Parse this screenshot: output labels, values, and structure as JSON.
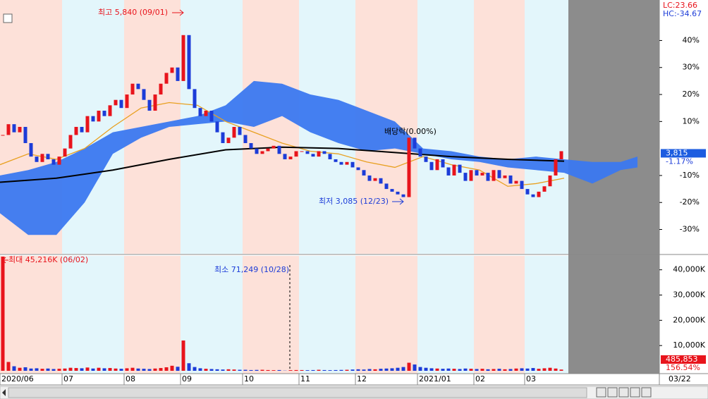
{
  "chart_data": [
    {
      "type": "candlestick",
      "values": [
        5,
        9,
        6,
        8,
        2,
        -3,
        -5,
        -2,
        -4,
        -6,
        -3,
        0,
        5,
        8,
        6,
        12,
        10,
        14,
        12,
        16,
        18,
        15,
        20,
        24,
        22,
        18,
        14,
        20,
        24,
        28,
        30,
        25,
        42,
        22,
        15,
        12,
        14,
        10,
        6,
        2,
        4,
        8,
        5,
        2,
        0,
        -2,
        -1,
        0,
        1,
        -2,
        -4,
        -3,
        -1,
        -1,
        -2,
        -3,
        -1,
        -2,
        -4,
        -5,
        -6,
        -5,
        -7,
        -8,
        -10,
        -12,
        -11,
        -13,
        -15,
        -16,
        -17,
        -18,
        4,
        0,
        -3,
        -5,
        -8,
        -4,
        -7,
        -10,
        -6,
        -9,
        -12,
        -8,
        -10,
        -9,
        -12,
        -8,
        -11,
        -10,
        -13,
        -12,
        -15,
        -17,
        -18,
        -16,
        -14,
        -10,
        -4,
        -1
      ],
      "up_color": "#e8141c",
      "down_color": "#1c3cd8",
      "xlim": [
        0,
        101
      ],
      "ylim": [
        -39,
        55
      ],
      "yticks": [
        {
          "value": 40,
          "label": "40%"
        },
        {
          "value": 30,
          "label": "30%"
        },
        {
          "value": 20,
          "label": "20%"
        },
        {
          "value": 10,
          "label": "10%"
        },
        {
          "value": -10,
          "label": "-10%"
        },
        {
          "value": -20,
          "label": "-20%"
        },
        {
          "value": -30,
          "label": "-30%"
        }
      ],
      "cloud": {
        "color": "#3b78f0",
        "x": [
          0,
          5,
          10,
          15,
          20,
          25,
          30,
          35,
          40,
          45,
          50,
          55,
          60,
          65,
          70,
          75,
          80,
          85,
          90,
          95,
          100,
          105,
          110,
          113
        ],
        "upper": [
          -10,
          -8,
          -5,
          0,
          6,
          8,
          10,
          12,
          16,
          25,
          24,
          20,
          18,
          14,
          10,
          0,
          -1,
          -3,
          -4,
          -3,
          -4,
          -5,
          -5,
          -3
        ],
        "lower": [
          -24,
          -32,
          -32,
          -20,
          -2,
          4,
          8,
          9,
          10,
          8,
          12,
          6,
          2,
          -1,
          0,
          -2,
          -4,
          -5,
          -7,
          -8,
          -9,
          -13,
          -8,
          -7
        ]
      },
      "lines": [
        {
          "color": "#e8a020",
          "x": [
            0,
            5,
            10,
            15,
            20,
            25,
            30,
            35,
            40,
            45,
            50,
            55,
            60,
            65,
            70,
            75,
            80,
            85,
            90,
            95,
            100
          ],
          "values": [
            -6,
            -2,
            -4,
            0,
            8,
            15,
            17,
            16,
            10,
            6,
            2,
            -1,
            -2,
            -5,
            -7,
            -3,
            -6,
            -8,
            -14,
            -13,
            -11
          ]
        },
        {
          "color": "#000000",
          "x": [
            0,
            10,
            20,
            30,
            40,
            50,
            60,
            70,
            80,
            90,
            100
          ],
          "values": [
            -12.5,
            -11,
            -8,
            -4,
            -0.5,
            0.5,
            0,
            -1.5,
            -3,
            -4,
            -4.7
          ]
        }
      ],
      "annotations": {
        "high": "최고 5,840 (09/01)",
        "low": "최저 3,085 (12/23)",
        "dividend": "배당락(0.00%)",
        "lc": "LC:23.66",
        "hc": "HC:-34.67",
        "price": "3,815",
        "change": "-1.17%"
      }
    },
    {
      "type": "bar",
      "values": [
        45216,
        3500,
        1800,
        1200,
        1400,
        900,
        1000,
        800,
        900,
        700,
        800,
        900,
        1200,
        1100,
        1000,
        1300,
        900,
        1200,
        1000,
        1100,
        900,
        800,
        1000,
        1200,
        900,
        800,
        700,
        900,
        1100,
        1400,
        2000,
        1600,
        12000,
        3000,
        1500,
        1000,
        800,
        700,
        600,
        500,
        600,
        500,
        400,
        400,
        300,
        350,
        400,
        300,
        250,
        300,
        71.249,
        250,
        300,
        300,
        250,
        300,
        400,
        300,
        250,
        300,
        350,
        400,
        500,
        600,
        500,
        700,
        600,
        800,
        900,
        1000,
        1200,
        1500,
        3200,
        2500,
        1500,
        1200,
        1000,
        900,
        800,
        900,
        800,
        700,
        900,
        800,
        700,
        800,
        600,
        700,
        800,
        600,
        700,
        900,
        1000,
        900,
        1100,
        800,
        1000,
        1200,
        900,
        485.853
      ],
      "xlim": [
        0,
        101
      ],
      "ylim": [
        0,
        45500
      ],
      "yticks": [
        {
          "value": 40000,
          "label": "40,000K"
        },
        {
          "value": 30000,
          "label": "30,000K"
        },
        {
          "value": 20000,
          "label": "20,000K"
        },
        {
          "value": 10000,
          "label": "10,000K"
        }
      ],
      "xticks": [
        {
          "value": 0,
          "label": "2020/06"
        },
        {
          "value": 11,
          "label": "07"
        },
        {
          "value": 22,
          "label": "08"
        },
        {
          "value": 32,
          "label": "09"
        },
        {
          "value": 43,
          "label": "10"
        },
        {
          "value": 53,
          "label": "11"
        },
        {
          "value": 63,
          "label": "12"
        },
        {
          "value": 74,
          "label": "2021/01"
        },
        {
          "value": 84,
          "label": "02"
        },
        {
          "value": 93,
          "label": "03"
        }
      ],
      "current_date": "03/22",
      "annotations": {
        "max": "최대 45,216K (06/02)",
        "min": "최소 71,249 (10/28)",
        "volume": "485,853",
        "ratio": "156.54%"
      }
    }
  ]
}
